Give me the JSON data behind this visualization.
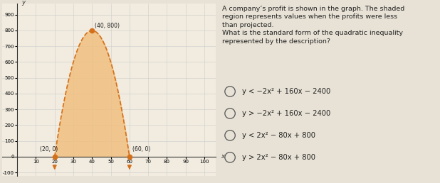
{
  "choices": [
    "y < −2x² + 160x − 2400",
    "y > −2x² + 160x − 2400",
    "y < 2x² − 80x + 800",
    "y > 2x² − 80x + 800"
  ],
  "graph_bg": "#f2ece0",
  "parabola_color": "#d4701a",
  "fill_color": "#f0c080",
  "fill_alpha": 0.85,
  "dot_color": "#d4701a",
  "x_ticks": [
    10,
    20,
    30,
    40,
    50,
    60,
    70,
    80,
    90,
    100
  ],
  "y_ticks": [
    -100,
    0,
    100,
    200,
    300,
    400,
    500,
    600,
    700,
    800,
    900
  ],
  "vertex": [
    40,
    800
  ],
  "roots": [
    20,
    60
  ],
  "label_vertex": "(40, 800)",
  "label_root1": "(20, 0)",
  "label_root2": "(60, 0)",
  "right_panel_bg": "#e8e2d6",
  "text_color": "#222222",
  "circle_color": "#555555",
  "desc_line1": "A company’s profit is shown in the graph. The shaded",
  "desc_line2": "region represents values when the profits were less",
  "desc_line3": "than projected.",
  "desc_line4": "What is the standard form of the quadratic inequality",
  "desc_line5": "represented by the description?"
}
